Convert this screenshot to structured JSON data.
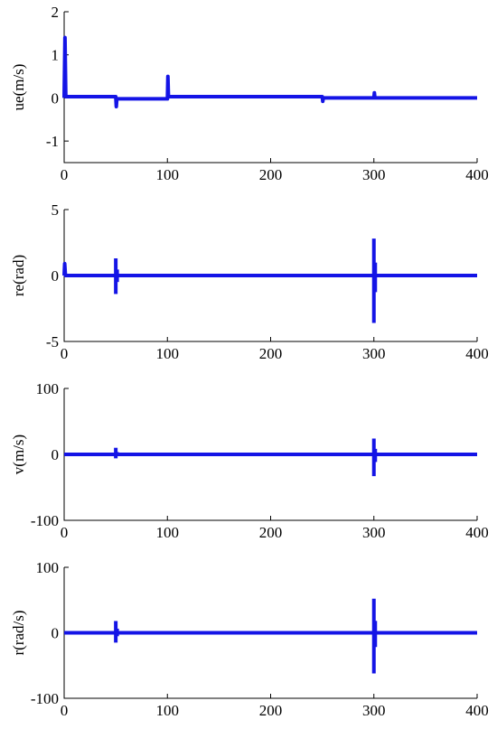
{
  "colors": {
    "series": "#1414e6",
    "axis": "#000000",
    "background": "#ffffff"
  },
  "chart_data": [
    {
      "type": "line",
      "ylabel": "ue(m/s)",
      "xlim": [
        0,
        400
      ],
      "ylim": [
        -1.5,
        2
      ],
      "xticks": [
        0,
        100,
        200,
        300,
        400
      ],
      "xtick_labels": [
        "0",
        "100",
        "200",
        "300",
        "400"
      ],
      "yticks": [
        -1,
        0,
        1,
        2
      ],
      "ytick_labels": [
        "-1",
        "0",
        "1",
        "2"
      ],
      "grid": false,
      "series": [
        {
          "x": [
            0,
            0.8,
            1.6,
            2.5,
            50,
            50.5,
            51,
            100,
            100.5,
            101,
            250,
            250.5,
            251,
            300,
            300.5,
            301,
            400
          ],
          "y": [
            0,
            1.4,
            0.03,
            0.03,
            0.03,
            -0.2,
            -0.02,
            -0.02,
            0.5,
            0.03,
            0.03,
            -0.08,
            0.0,
            0.0,
            0.12,
            0.0,
            0.0
          ]
        }
      ],
      "spikes": []
    },
    {
      "type": "line",
      "ylabel": "re(rad)",
      "xlim": [
        0,
        400
      ],
      "ylim": [
        -5,
        5
      ],
      "xticks": [
        0,
        100,
        200,
        300,
        400
      ],
      "xtick_labels": [
        "0",
        "100",
        "200",
        "300",
        "400"
      ],
      "yticks": [
        -5,
        0,
        5
      ],
      "ytick_labels": [
        "-5",
        "0",
        "5"
      ],
      "grid": false,
      "series": [
        {
          "x": [
            0,
            0.5,
            1.2,
            400
          ],
          "y": [
            0,
            0.9,
            0,
            0
          ]
        }
      ],
      "spikes": [
        {
          "x": 50,
          "min": -1.4,
          "max": 1.3
        },
        {
          "x": 300,
          "min": -3.6,
          "max": 2.8
        }
      ]
    },
    {
      "type": "line",
      "ylabel": "v(m/s)",
      "xlim": [
        0,
        400
      ],
      "ylim": [
        -100,
        100
      ],
      "xticks": [
        0,
        100,
        200,
        300,
        400
      ],
      "xtick_labels": [
        "0",
        "100",
        "200",
        "300",
        "400"
      ],
      "yticks": [
        -100,
        0,
        100
      ],
      "ytick_labels": [
        "-100",
        "0",
        "100"
      ],
      "grid": false,
      "series": [
        {
          "x": [
            0,
            400
          ],
          "y": [
            0,
            0
          ]
        }
      ],
      "spikes": [
        {
          "x": 50,
          "min": -6,
          "max": 10
        },
        {
          "x": 300,
          "min": -33,
          "max": 24
        }
      ]
    },
    {
      "type": "line",
      "ylabel": "r(rad/s)",
      "xlim": [
        0,
        400
      ],
      "ylim": [
        -100,
        100
      ],
      "xticks": [
        0,
        100,
        200,
        300,
        400
      ],
      "xtick_labels": [
        "0",
        "100",
        "200",
        "300",
        "400"
      ],
      "yticks": [
        -100,
        0,
        100
      ],
      "ytick_labels": [
        "-100",
        "0",
        "100"
      ],
      "grid": false,
      "series": [
        {
          "x": [
            0,
            400
          ],
          "y": [
            0,
            0
          ]
        }
      ],
      "spikes": [
        {
          "x": 50,
          "min": -15,
          "max": 18
        },
        {
          "x": 300,
          "min": -62,
          "max": 52
        }
      ]
    }
  ]
}
